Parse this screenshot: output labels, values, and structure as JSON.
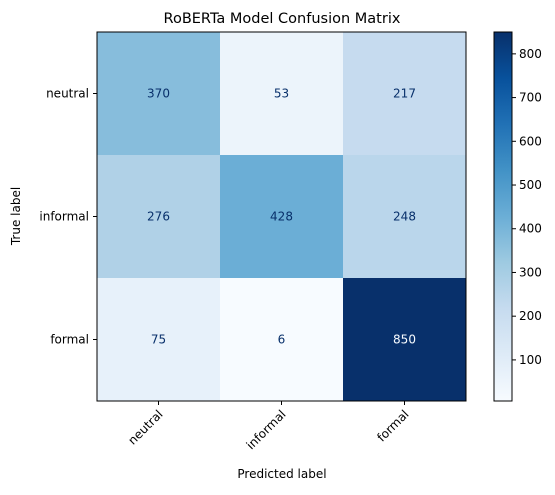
{
  "chart_data": {
    "type": "heatmap",
    "title": "RoBERTa Model Confusion Matrix",
    "xlabel": "Predicted label",
    "ylabel": "True label",
    "x_categories": [
      "neutral",
      "informal",
      "formal"
    ],
    "y_categories": [
      "neutral",
      "informal",
      "formal"
    ],
    "values": [
      [
        370,
        53,
        217
      ],
      [
        276,
        428,
        248
      ],
      [
        75,
        6,
        850
      ]
    ],
    "colormap": "Blues",
    "color_range": [
      6,
      850
    ],
    "colorbar_ticks": [
      100,
      200,
      300,
      400,
      500,
      600,
      700,
      800
    ],
    "grid": false
  }
}
